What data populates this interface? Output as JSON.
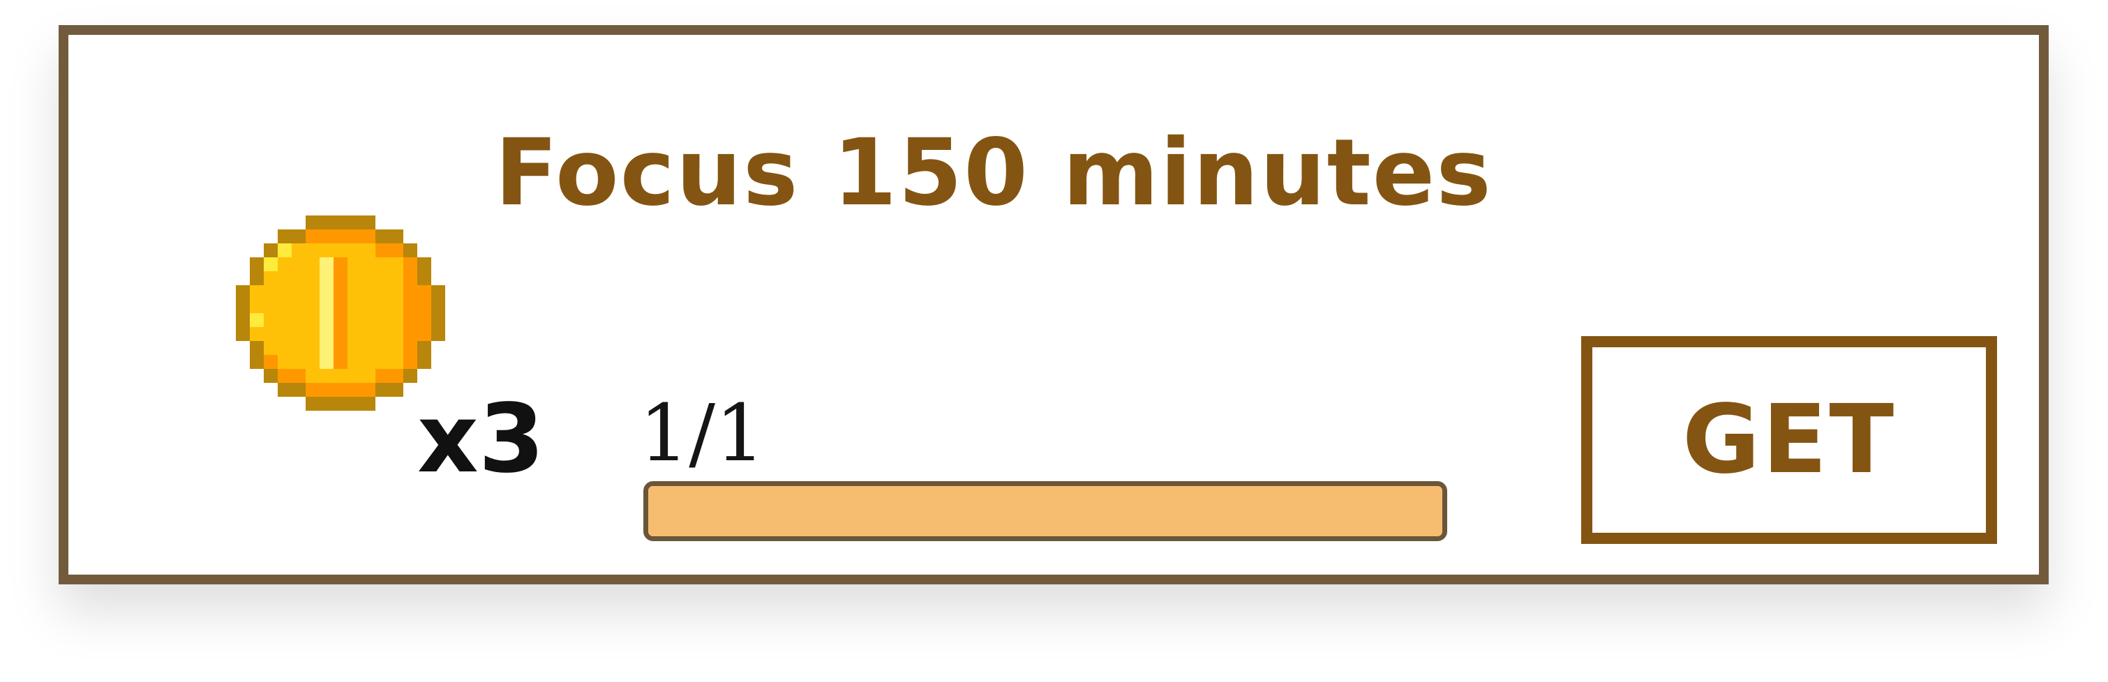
{
  "quest": {
    "title": "Focus 150 minutes",
    "reward": {
      "icon": "coin-icon",
      "multiplier": "x3"
    },
    "progress": {
      "label": "1/1",
      "current": 1,
      "total": 1,
      "fraction": 1.0
    },
    "action_label": "GET"
  },
  "colors": {
    "accent": "#845512",
    "border": "#725b3d",
    "progress_fill": "#f6bd70"
  }
}
